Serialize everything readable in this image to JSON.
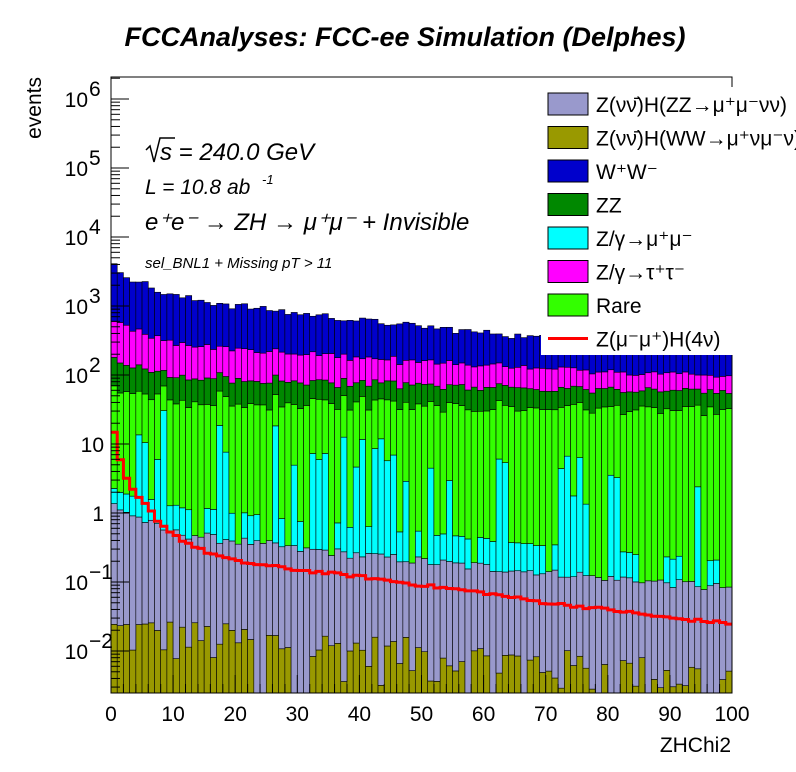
{
  "chart_data": {
    "type": "stacked-histogram",
    "title": "FCCAnalyses: FCC-ee Simulation (Delphes)",
    "xlabel": "ZHChi2",
    "ylabel": "events",
    "xlim": [
      0,
      100
    ],
    "ylim": [
      0.002,
      2000000
    ],
    "yscale": "log",
    "bin_width": 1,
    "x_ticks": [
      "0",
      "10",
      "20",
      "30",
      "40",
      "50",
      "60",
      "70",
      "80",
      "90",
      "100"
    ],
    "y_ticks": [
      {
        "value": 0.01,
        "mantissa": "10",
        "exp": "−2"
      },
      {
        "value": 0.1,
        "mantissa": "10",
        "exp": "−1"
      },
      {
        "value": 1,
        "mantissa": "1",
        "exp": ""
      },
      {
        "value": 10,
        "mantissa": "10",
        "exp": ""
      },
      {
        "value": 100,
        "mantissa": "10",
        "exp": "2"
      },
      {
        "value": 1000,
        "mantissa": "10",
        "exp": "3"
      },
      {
        "value": 10000,
        "mantissa": "10",
        "exp": "4"
      },
      {
        "value": 100000,
        "mantissa": "10",
        "exp": "5"
      },
      {
        "value": 1000000,
        "mantissa": "10",
        "exp": "6"
      }
    ],
    "annotations": {
      "sqrt_s": "s = 240.0 GeV",
      "lumi": "L = 10.8 ab",
      "lumi_exp": "-1",
      "process": "e⁺e⁻ → ZH → μ⁺μ⁻ + Invisible",
      "selection": "sel_BNL1 + Missing pT > 11"
    },
    "legend_position": "top-right",
    "series_order": "bottom-to-top",
    "series": [
      {
        "name": "Z(νν̄)H(WW→μ⁺νμ⁻ν)",
        "color": "#999900",
        "shape": "noise",
        "start": 0.02,
        "end": 0.004
      },
      {
        "name": "Z(νν̄)H(ZZ→μ⁺μ⁻νν)",
        "color": "#9999cc",
        "shape": "exp",
        "start": 0.8,
        "end": 0.08
      },
      {
        "name": "Z/γ→μ⁺μ⁻",
        "color": "#00ffff",
        "shape": "spiky",
        "start": 3.0,
        "end": 0.0
      },
      {
        "name": "Rare",
        "color": "#33ff00",
        "shape": "exp",
        "start": 40,
        "end": 30
      },
      {
        "name": "ZZ",
        "color": "#008800",
        "shape": "exp",
        "start": 60,
        "end": 25
      },
      {
        "name": "Z/γ→τ⁺τ⁻",
        "color": "#ff00ff",
        "shape": "exp",
        "start": 300,
        "end": 40
      },
      {
        "name": "W⁺W⁻",
        "color": "#0000cc",
        "shape": "exp",
        "start": 1900,
        "end": 120
      }
    ],
    "signal": {
      "name": "Z(μ⁻μ⁺)H(4ν)",
      "color": "#ff0000",
      "points": [
        [
          0,
          25
        ],
        [
          1,
          8
        ],
        [
          2,
          4
        ],
        [
          3,
          2.5
        ],
        [
          4,
          1.8
        ],
        [
          5,
          1.5
        ],
        [
          6,
          1.2
        ],
        [
          7,
          0.9
        ],
        [
          8,
          0.7
        ],
        [
          10,
          0.5
        ],
        [
          12,
          0.38
        ],
        [
          15,
          0.28
        ],
        [
          20,
          0.2
        ],
        [
          30,
          0.15
        ],
        [
          40,
          0.12
        ],
        [
          50,
          0.09
        ],
        [
          60,
          0.07
        ],
        [
          70,
          0.05
        ],
        [
          80,
          0.04
        ],
        [
          90,
          0.03
        ],
        [
          100,
          0.025
        ]
      ]
    },
    "legend": [
      {
        "label": "Z(νν̄)H(ZZ→μ⁺μ⁻νν)",
        "color": "#9999cc",
        "kind": "box"
      },
      {
        "label": "Z(νν̄)H(WW→μ⁺νμ⁻ν)",
        "color": "#999900",
        "kind": "box"
      },
      {
        "label": "W⁺W⁻",
        "color": "#0000cc",
        "kind": "box"
      },
      {
        "label": "ZZ",
        "color": "#008800",
        "kind": "box"
      },
      {
        "label": "Z/γ→μ⁺μ⁻",
        "color": "#00ffff",
        "kind": "box"
      },
      {
        "label": "Z/γ→τ⁺τ⁻",
        "color": "#ff00ff",
        "kind": "box"
      },
      {
        "label": "Rare",
        "color": "#33ff00",
        "kind": "box"
      },
      {
        "label": "Z(μ⁻μ⁺)H(4ν)",
        "color": "#ff0000",
        "kind": "line"
      }
    ]
  }
}
